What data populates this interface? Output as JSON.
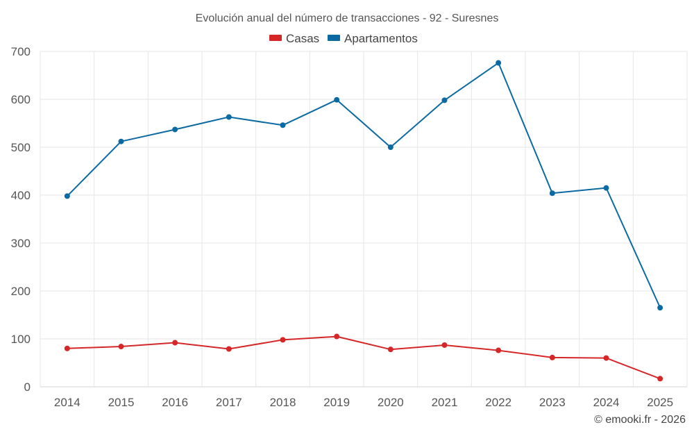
{
  "chart_data": {
    "type": "line",
    "title": "Evolución anual del número de transacciones - 92 - Suresnes",
    "xlabel": "",
    "ylabel": "",
    "categories": [
      "2014",
      "2015",
      "2016",
      "2017",
      "2018",
      "2019",
      "2020",
      "2021",
      "2022",
      "2023",
      "2024",
      "2025"
    ],
    "ylim": [
      0,
      700
    ],
    "yticks": [
      0,
      100,
      200,
      300,
      400,
      500,
      600,
      700
    ],
    "ytick_labels": [
      "0",
      "100",
      "200",
      "300",
      "400",
      "500",
      "600",
      "700"
    ],
    "grid": true,
    "legend_position": "top-center",
    "series": [
      {
        "name": "Casas",
        "color": "#d62728",
        "values": [
          80,
          84,
          92,
          79,
          98,
          105,
          78,
          87,
          76,
          61,
          60,
          17
        ]
      },
      {
        "name": "Apartamentos",
        "color": "#0b6aa2",
        "values": [
          398,
          512,
          537,
          563,
          546,
          599,
          500,
          598,
          676,
          404,
          415,
          165
        ]
      }
    ]
  },
  "footer": {
    "credit": "© emooki.fr - 2026"
  }
}
